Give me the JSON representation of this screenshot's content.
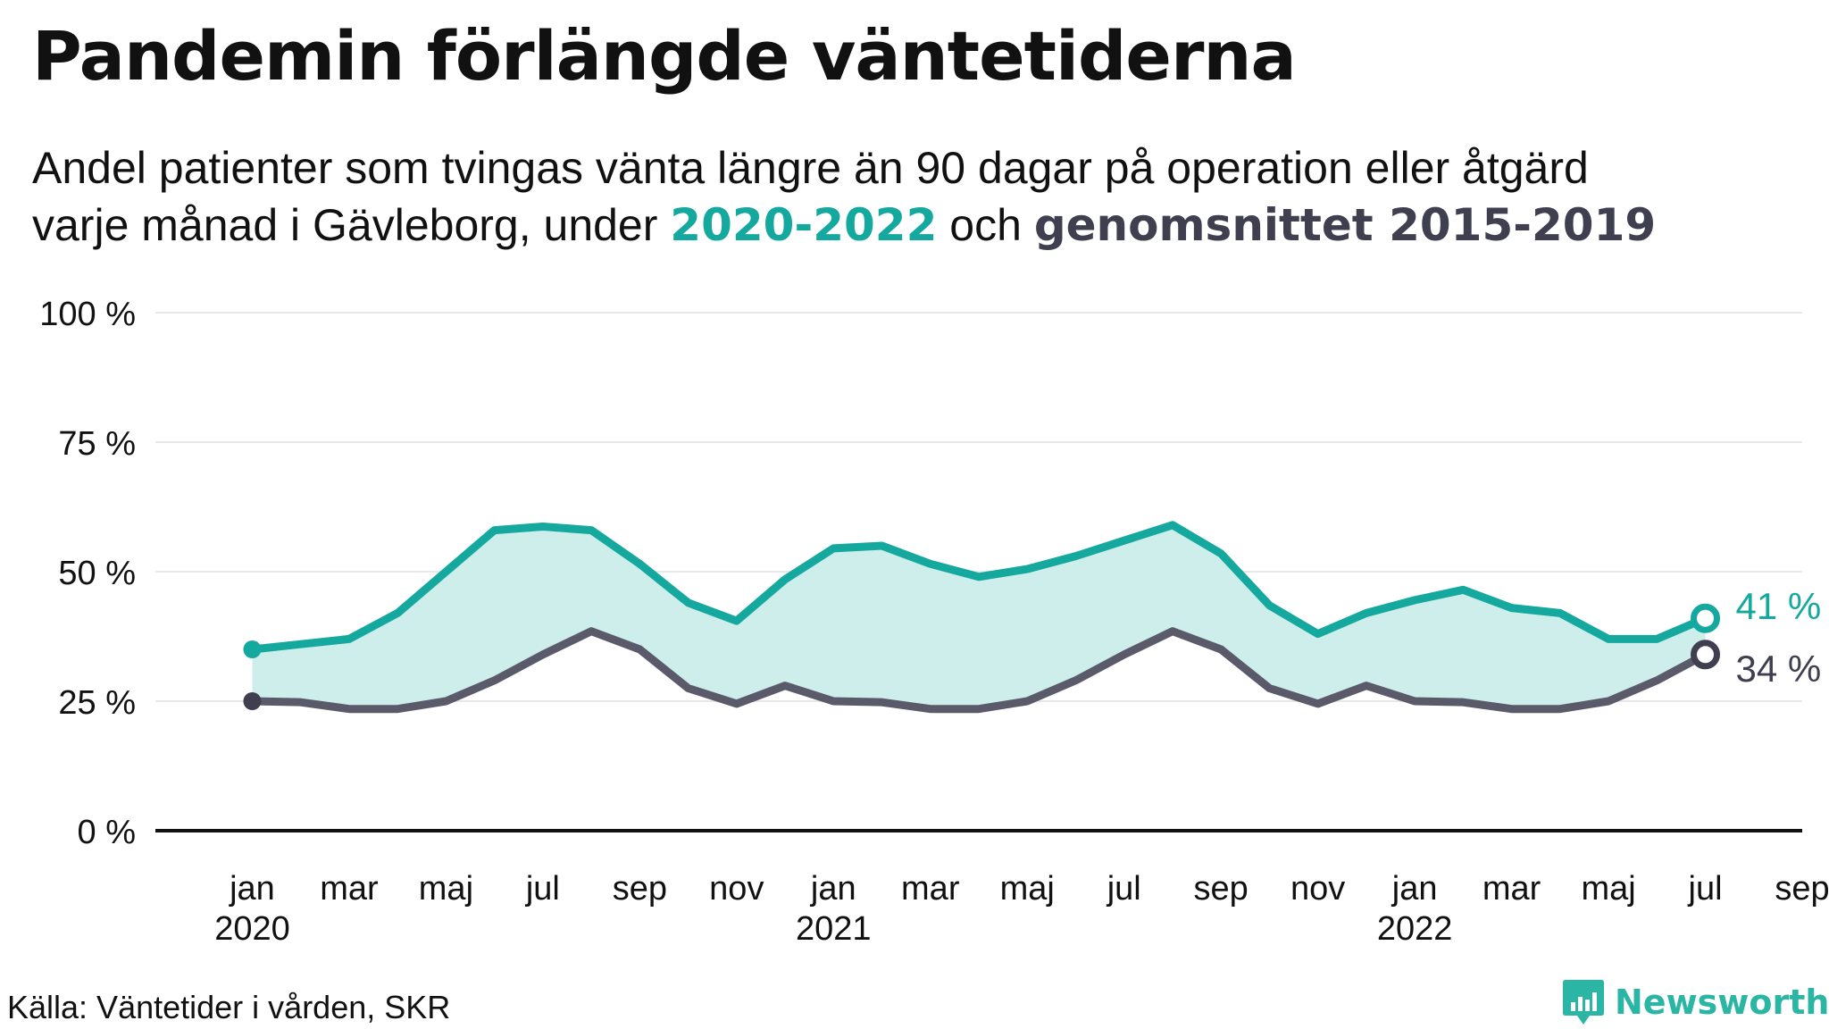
{
  "title": "Pandemin förlängde väntetiderna",
  "subtitle": {
    "line1": "Andel patienter som tvingas vänta längre än 90 dagar på operation eller åtgärd",
    "line2_prefix": "varje månad i Gävleborg, under",
    "highlight_a": "2020-2022",
    "connector": "och",
    "highlight_b": "genomsnittet 2015-2019"
  },
  "colors": {
    "series_2020_2022": "#14a89e",
    "average_2015_2019": "#5a5a6a",
    "band_fill": "#cdeeeb",
    "axis": "#111111",
    "gridline": "#e8e8e8",
    "brand": "#2bb5a4"
  },
  "chart_data": {
    "type": "line",
    "x": [
      "2020-01",
      "2020-02",
      "2020-03",
      "2020-04",
      "2020-05",
      "2020-06",
      "2020-07",
      "2020-08",
      "2020-09",
      "2020-10",
      "2020-11",
      "2020-12",
      "2021-01",
      "2021-02",
      "2021-03",
      "2021-04",
      "2021-05",
      "2021-06",
      "2021-07",
      "2021-08",
      "2021-09",
      "2021-10",
      "2021-11",
      "2021-12",
      "2022-01",
      "2022-02",
      "2022-03",
      "2022-04",
      "2022-05",
      "2022-06",
      "2022-07"
    ],
    "series": [
      {
        "name": "2020-2022",
        "values": [
          35,
          36,
          37,
          42,
          50,
          58,
          58.7,
          58,
          51.5,
          44,
          40.5,
          48.5,
          54.5,
          55,
          51.5,
          49,
          50.5,
          53,
          56,
          59,
          53.5,
          43.5,
          38,
          42,
          44.5,
          46.5,
          43,
          42,
          37,
          37,
          41
        ]
      },
      {
        "name": "genomsnittet 2015-2019",
        "values": [
          25,
          24.8,
          23.5,
          23.5,
          25,
          29,
          34,
          38.5,
          35,
          27.5,
          24.5,
          28,
          25,
          24.8,
          23.5,
          23.5,
          25,
          29,
          34,
          38.5,
          35,
          27.5,
          24.5,
          28,
          25,
          24.8,
          23.5,
          23.5,
          25,
          29,
          34
        ]
      }
    ],
    "end_labels": [
      "41 %",
      "34 %"
    ],
    "ylim": [
      0,
      100
    ],
    "yticks": [
      0,
      25,
      50,
      75,
      100
    ],
    "ytick_labels": [
      "0 %",
      "25 %",
      "50 %",
      "75 %",
      "100 %"
    ],
    "xticks": [
      {
        "x": "2020-01",
        "month": "jan",
        "year": "2020"
      },
      {
        "x": "2020-03",
        "month": "mar",
        "year": ""
      },
      {
        "x": "2020-05",
        "month": "maj",
        "year": ""
      },
      {
        "x": "2020-07",
        "month": "jul",
        "year": ""
      },
      {
        "x": "2020-09",
        "month": "sep",
        "year": ""
      },
      {
        "x": "2020-11",
        "month": "nov",
        "year": ""
      },
      {
        "x": "2021-01",
        "month": "jan",
        "year": "2021"
      },
      {
        "x": "2021-03",
        "month": "mar",
        "year": ""
      },
      {
        "x": "2021-05",
        "month": "maj",
        "year": ""
      },
      {
        "x": "2021-07",
        "month": "jul",
        "year": ""
      },
      {
        "x": "2021-09",
        "month": "sep",
        "year": ""
      },
      {
        "x": "2021-11",
        "month": "nov",
        "year": ""
      },
      {
        "x": "2022-01",
        "month": "jan",
        "year": "2022"
      },
      {
        "x": "2022-03",
        "month": "mar",
        "year": ""
      },
      {
        "x": "2022-05",
        "month": "maj",
        "year": ""
      },
      {
        "x": "2022-07",
        "month": "jul",
        "year": ""
      },
      {
        "x": "2022-09",
        "month": "sep",
        "year": ""
      }
    ],
    "xlim": [
      "2019-11",
      "2022-09"
    ],
    "grid": true,
    "legend": "none"
  },
  "source": "Källa: Väntetider i vården, SKR",
  "brand": {
    "name": "Newsworthy",
    "icon": "bar-chart-badge-icon"
  }
}
